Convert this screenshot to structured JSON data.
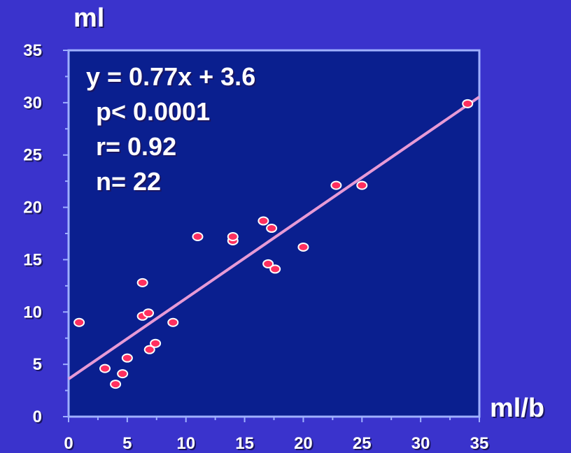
{
  "chart_data": {
    "type": "scatter",
    "title": "",
    "xlabel": "ml/b",
    "ylabel": "ml",
    "xlim": [
      0,
      35
    ],
    "ylim": [
      0,
      35
    ],
    "x_ticks": [
      "0",
      "5",
      "10",
      "15",
      "20",
      "25",
      "30",
      "35"
    ],
    "y_ticks": [
      "0",
      "5",
      "10",
      "15",
      "20",
      "25",
      "30",
      "35"
    ],
    "grid": false,
    "regression": {
      "slope": 0.77,
      "intercept": 3.6
    },
    "annotations": [
      "y = 0.77x + 3.6",
      "p< 0.0001",
      "r= 0.92",
      "n= 22"
    ],
    "points": [
      {
        "x": 0.9,
        "y": 9.0
      },
      {
        "x": 3.1,
        "y": 4.6
      },
      {
        "x": 4.0,
        "y": 3.1
      },
      {
        "x": 4.6,
        "y": 4.1
      },
      {
        "x": 5.0,
        "y": 5.6
      },
      {
        "x": 6.3,
        "y": 12.8
      },
      {
        "x": 6.3,
        "y": 9.6
      },
      {
        "x": 6.8,
        "y": 9.9
      },
      {
        "x": 6.9,
        "y": 6.4
      },
      {
        "x": 7.4,
        "y": 7.0
      },
      {
        "x": 8.9,
        "y": 9.0
      },
      {
        "x": 11.0,
        "y": 17.2
      },
      {
        "x": 14.0,
        "y": 16.8
      },
      {
        "x": 14.0,
        "y": 17.2
      },
      {
        "x": 16.6,
        "y": 18.7
      },
      {
        "x": 17.0,
        "y": 14.6
      },
      {
        "x": 17.3,
        "y": 18.0
      },
      {
        "x": 17.6,
        "y": 14.1
      },
      {
        "x": 20.0,
        "y": 16.2
      },
      {
        "x": 22.8,
        "y": 22.1
      },
      {
        "x": 25.0,
        "y": 22.1
      },
      {
        "x": 34.0,
        "y": 29.9
      }
    ]
  },
  "colors": {
    "page_background": "#3a33cc",
    "plot_background": "#0a1f8f",
    "plot_border": "#9fb0ff",
    "regression_line": "#e79ad6",
    "point_fill": "#ff2f5f",
    "point_stroke": "#ffffff",
    "text": "#ffffff"
  }
}
